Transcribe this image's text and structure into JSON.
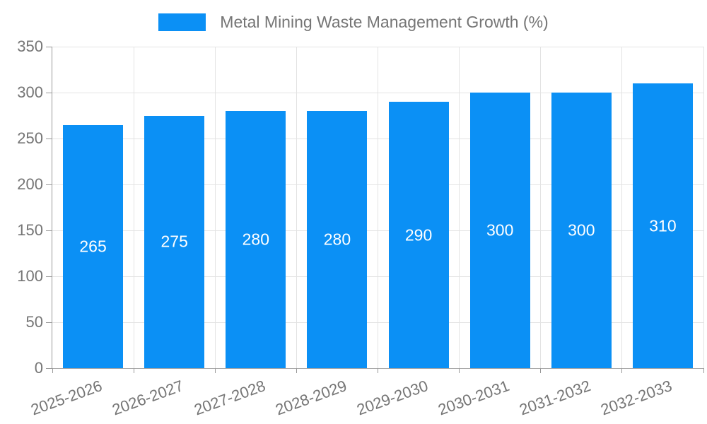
{
  "chart_data": {
    "type": "bar",
    "title": "Metal Mining Waste Management Growth (%)",
    "series_name": "Metal Mining Waste Management Growth (%)",
    "categories": [
      "2025-2026",
      "2026-2027",
      "2027-2028",
      "2028-2029",
      "2029-2030",
      "2030-2031",
      "2031-2032",
      "2032-2033"
    ],
    "values": [
      265,
      275,
      280,
      280,
      290,
      300,
      300,
      310
    ],
    "xlabel": "",
    "ylabel": "",
    "ylim": [
      0,
      350
    ],
    "ytick_step": 50,
    "ytick_labels": [
      "0",
      "50",
      "100",
      "150",
      "200",
      "250",
      "300",
      "350"
    ],
    "grid": true,
    "legend_position": "top-center",
    "bar_value_labels_visible": true,
    "xlabel_rotation_deg": 20,
    "colors": {
      "bar": "#0b90f5",
      "axis_label_text": "#757575",
      "bar_label_text": "#ffffff",
      "gridline": "#e3e3e3",
      "axis_line": "#999999",
      "background": "#ffffff"
    }
  }
}
